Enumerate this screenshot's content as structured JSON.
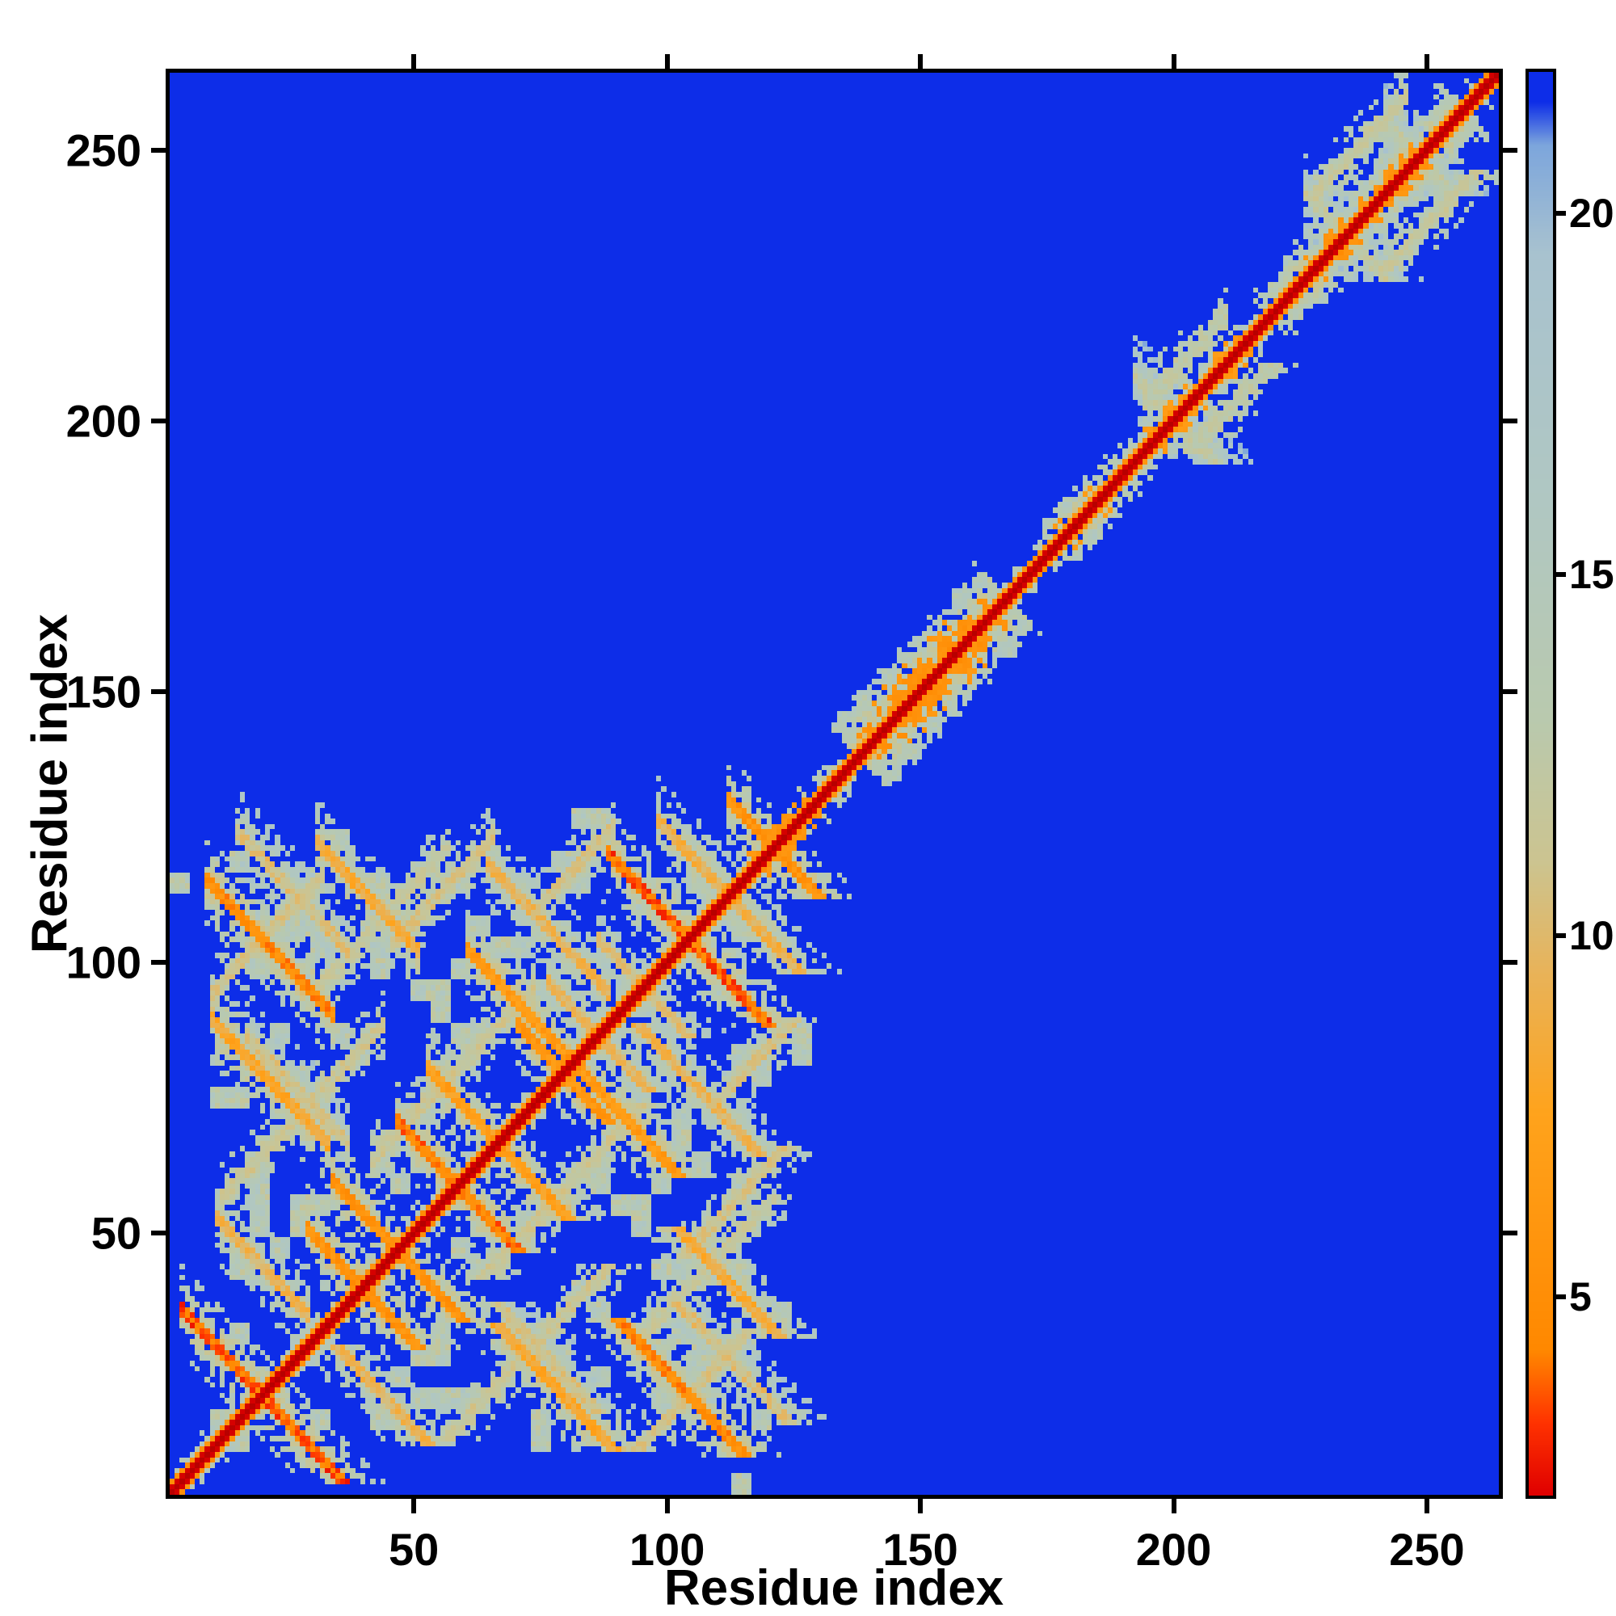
{
  "chart_data": {
    "type": "heatmap",
    "title": "",
    "xlabel": "Residue index",
    "ylabel": "Residue index",
    "x_range": [
      1,
      265
    ],
    "y_range": [
      1,
      265
    ],
    "x_ticks": [
      50,
      100,
      150,
      200,
      250
    ],
    "y_ticks": [
      50,
      100,
      150,
      200,
      250
    ],
    "colorbar": {
      "min": 2.2,
      "max": 22.0,
      "ticks": [
        5,
        10,
        15,
        20
      ]
    },
    "legend_position": "right-colorbar",
    "grid": false,
    "description": "Symmetric residue-residue distance map of a 265-residue protein. Red main diagonal (zero distance) with orange near-diagonal band. Dense anti-parallel beta-sheet 'X' contact motifs fill the lower-left block (residues 1-125) indicating a compact two-lobe domain; residues 125-265 show only near-diagonal contacts with a widened pale blob near residues 137-167 and broader speckled contacts near 220-258. Background blue = large distance (>= ~22 A); pale gray-green = ~10-20 A; orange = ~4-8 A; red = < ~3 A.",
    "colormap_stops": [
      [
        0.0,
        "#b80000"
      ],
      [
        2.2,
        "#e00000"
      ],
      [
        3.2,
        "#ff3300"
      ],
      [
        4.2,
        "#ff8800"
      ],
      [
        7.5,
        "#ffa31c"
      ],
      [
        9.5,
        "#e8b35a"
      ],
      [
        11.0,
        "#ccc490"
      ],
      [
        13.0,
        "#b9c9ae"
      ],
      [
        16.0,
        "#b0c7c2"
      ],
      [
        19.5,
        "#a8c2cf"
      ],
      [
        21.0,
        "#7da6dc"
      ],
      [
        21.6,
        "#0d2de8"
      ],
      [
        22.3,
        "#0d2de8"
      ]
    ],
    "generator": {
      "n": 265,
      "background": 22.3,
      "halo": [
        [
          0,
          126,
          4.5
        ],
        [
          126,
          137,
          5
        ],
        [
          137,
          167,
          12
        ],
        [
          167,
          176,
          4
        ],
        [
          176,
          190,
          6.5
        ],
        [
          190,
          220,
          5.5
        ],
        [
          220,
          258,
          9
        ],
        [
          258,
          266,
          5
        ]
      ],
      "diag_streaks": [
        [
          139,
          164,
          3,
          5,
          5.4,
          0.55
        ],
        [
          143,
          158,
          6,
          8,
          6.0,
          0.3
        ],
        [
          228,
          252,
          3,
          4,
          5.8,
          0.4
        ],
        [
          177,
          186,
          3,
          4,
          6.4,
          0.3
        ],
        [
          195,
          214,
          3,
          4,
          6.6,
          0.25
        ],
        [
          117,
          130,
          3,
          4,
          5.8,
          0.45
        ]
      ],
      "anti_segments": [
        [
          36,
          3,
          19,
          3.8
        ],
        [
          76,
          28,
          39,
          5.5
        ],
        [
          114,
          46,
          58,
          4.5
        ],
        [
          156,
          70,
          79,
          6.0
        ],
        [
          206,
          88,
          104,
          4.0
        ],
        [
          240,
          112,
          121,
          5.5
        ],
        [
          121,
          8,
          31,
          5.0
        ],
        [
          96,
          9,
          30,
          8.0
        ],
        [
          60,
          10,
          26,
          9.5
        ],
        [
          90,
          33,
          44,
          5.5
        ],
        [
          130,
          52,
          64,
          7.0
        ],
        [
          150,
          30,
          48,
          8.5
        ],
        [
          160,
          60,
          79,
          6.5
        ],
        [
          180,
          64,
          86,
          9.5
        ],
        [
          222,
          98,
          110,
          9.0
        ],
        [
          100,
          16,
          34,
          11.0
        ],
        [
          136,
          14,
          34,
          10.5
        ],
        [
          170,
          76,
          85,
          10.0
        ],
        [
          188,
          86,
          96,
          10.5
        ],
        [
          400,
          193,
          201,
          12.5
        ],
        [
          468,
          227,
          238,
          12.0
        ],
        [
          497,
          243,
          252,
          12.5
        ]
      ],
      "par_segments": [
        [
          85,
          8,
          30,
          11.0
        ],
        [
          45,
          10,
          42,
          11.5
        ],
        [
          22,
          40,
          72,
          11.5
        ],
        [
          58,
          44,
          64,
          11.0
        ],
        [
          36,
          72,
          88,
          11.0
        ],
        [
          65,
          30,
          55,
          12.0
        ],
        [
          14,
          228,
          246,
          12.0
        ],
        [
          9,
          194,
          210,
          12.5
        ]
      ],
      "speckle": {
        "region_max_index": 128,
        "threshold": 0.72,
        "value": 11.5
      }
    }
  }
}
